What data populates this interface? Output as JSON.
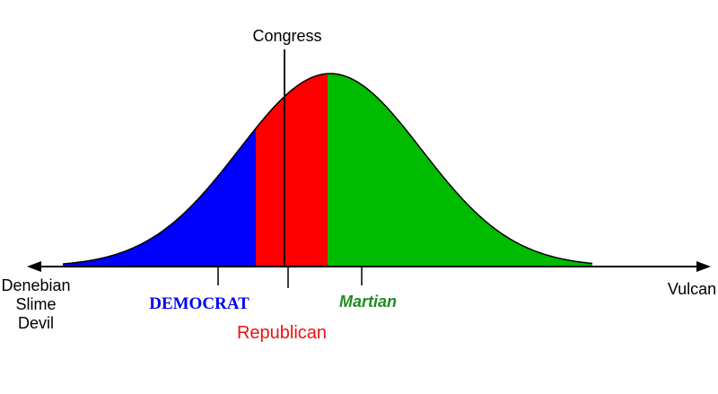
{
  "labels": {
    "congress": "Congress",
    "left_end": [
      "Denebian",
      "Slime",
      "Devil"
    ],
    "right_end": "Vulcan",
    "democrat": "DEMOCRAT",
    "martian": "Martian",
    "republican": "Republican"
  }
}
